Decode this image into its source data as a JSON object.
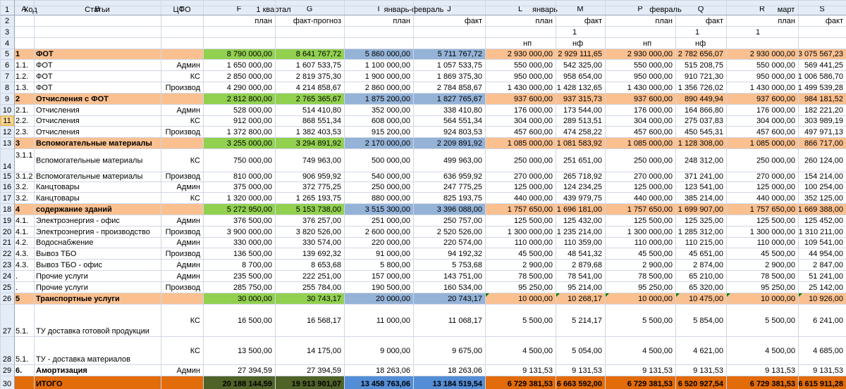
{
  "col_letters": [
    "A",
    "B",
    "C",
    "F",
    "G",
    "I",
    "J",
    "L",
    "M",
    "P",
    "Q",
    "R",
    "S"
  ],
  "row_numbers": [
    "1",
    "2",
    "3",
    "4",
    "5",
    "6",
    "7",
    "8",
    "9",
    "10",
    "11",
    "12",
    "13",
    "14",
    "15",
    "16",
    "17",
    "18",
    "19",
    "20",
    "21",
    "22",
    "23",
    "24",
    "25",
    "26",
    "27",
    "28",
    "29",
    "30"
  ],
  "header": {
    "code": "Код",
    "articles": "Статьи",
    "cfo": "ЦФО",
    "q1": "1 квартал",
    "jan_feb": "январь-февраль",
    "jan": "январь",
    "feb": "февраль",
    "mar": "март",
    "plan": "план",
    "fact_forecast": "факт-прогноз",
    "fact": "факт",
    "one": "1",
    "np": "нп",
    "nf": "нф"
  },
  "rows": [
    {
      "n": "5",
      "type": "group",
      "cells": [
        "1",
        "ФОТ",
        "",
        "8 790 000,00",
        "8 641 767,72",
        "5 860 000,00",
        "5 711 767,72",
        "2 930 000,00",
        "2 929 111,65",
        "2 930 000,00",
        "2 782 656,07",
        "2 930 000,00",
        "3 075 567,23"
      ]
    },
    {
      "n": "6",
      "type": "data",
      "cells": [
        "1.1.",
        "ФОТ",
        "Админ",
        "1 650 000,00",
        "1 607 533,75",
        "1 100 000,00",
        "1 057 533,75",
        "550 000,00",
        "542 325,00",
        "550 000,00",
        "515 208,75",
        "550 000,00",
        "569 441,25"
      ]
    },
    {
      "n": "7",
      "type": "data",
      "cells": [
        "1.2.",
        "ФОТ",
        "КС",
        "2 850 000,00",
        "2 819 375,30",
        "1 900 000,00",
        "1 869 375,30",
        "950 000,00",
        "958 654,00",
        "950 000,00",
        "910 721,30",
        "950 000,00",
        "1 006 586,70"
      ]
    },
    {
      "n": "8",
      "type": "data",
      "cells": [
        "1.3.",
        "ФОТ",
        "Производ",
        "4 290 000,00",
        "4 214 858,67",
        "2 860 000,00",
        "2 784 858,67",
        "1 430 000,00",
        "1 428 132,65",
        "1 430 000,00",
        "1 356 726,02",
        "1 430 000,00",
        "1 499 539,28"
      ]
    },
    {
      "n": "9",
      "type": "group",
      "cells": [
        "2",
        "Отчисления с ФОТ",
        "",
        "2 812 800,00",
        "2 765 365,67",
        "1 875 200,00",
        "1 827 765,67",
        "937 600,00",
        "937 315,73",
        "937 600,00",
        "890 449,94",
        "937 600,00",
        "984 181,52"
      ]
    },
    {
      "n": "10",
      "type": "data",
      "cells": [
        "2.1.",
        "Отчисления",
        "Админ",
        "528 000,00",
        "514 410,80",
        "352 000,00",
        "338 410,80",
        "176 000,00",
        "173 544,00",
        "176 000,00",
        "164 866,80",
        "176 000,00",
        "182 221,20"
      ]
    },
    {
      "n": "11",
      "type": "data",
      "cells": [
        "2.2.",
        "Отчисления",
        "КС",
        "912 000,00",
        "868 551,34",
        "608 000,00",
        "564 551,34",
        "304 000,00",
        "289 513,51",
        "304 000,00",
        "275 037,83",
        "304 000,00",
        "303 989,19"
      ]
    },
    {
      "n": "12",
      "type": "data",
      "cells": [
        "2.3.",
        "Отчисления",
        "Производ",
        "1 372 800,00",
        "1 382 403,53",
        "915 200,00",
        "924 803,53",
        "457 600,00",
        "474 258,22",
        "457 600,00",
        "450 545,31",
        "457 600,00",
        "497 971,13"
      ]
    },
    {
      "n": "13",
      "type": "group",
      "cells": [
        "3",
        "Вспомогательные материалы",
        "",
        "3 255 000,00",
        "3 294 891,92",
        "2 170 000,00",
        "2 209 891,92",
        "1 085 000,00",
        "1 081 583,92",
        "1 085 000,00",
        "1 128 308,00",
        "1 085 000,00",
        "866 717,00"
      ]
    },
    {
      "n": "14",
      "type": "data",
      "tall": true,
      "cells": [
        "3.1.1",
        "Вспомогательные материалы",
        "КС",
        "750 000,00",
        "749 963,00",
        "500 000,00",
        "499 963,00",
        "250 000,00",
        "251 651,00",
        "250 000,00",
        "248 312,00",
        "250 000,00",
        "260 124,00"
      ]
    },
    {
      "n": "15",
      "type": "data",
      "cells": [
        "3.1.2",
        "Вспомогательные материалы",
        "Производ",
        "810 000,00",
        "906 959,92",
        "540 000,00",
        "636 959,92",
        "270 000,00",
        "265 718,92",
        "270 000,00",
        "371 241,00",
        "270 000,00",
        "154 214,00"
      ]
    },
    {
      "n": "16",
      "type": "data",
      "cells": [
        "3.2.",
        "Канцтовары",
        "Админ",
        "375 000,00",
        "372 775,25",
        "250 000,00",
        "247 775,25",
        "125 000,00",
        "124 234,25",
        "125 000,00",
        "123 541,00",
        "125 000,00",
        "100 254,00"
      ]
    },
    {
      "n": "17",
      "type": "data",
      "cells": [
        "3.2.",
        "Канцтовары",
        "КС",
        "1 320 000,00",
        "1 265 193,75",
        "880 000,00",
        "825 193,75",
        "440 000,00",
        "439 979,75",
        "440 000,00",
        "385 214,00",
        "440 000,00",
        "352 125,00"
      ]
    },
    {
      "n": "18",
      "type": "group",
      "cells": [
        "4",
        "содержание зданий",
        "",
        "5 272 950,00",
        "5 153 738,00",
        "3 515 300,00",
        "3 396 088,00",
        "1 757 650,00",
        "1 696 181,00",
        "1 757 650,00",
        "1 699 907,00",
        "1 757 650,00",
        "1 669 388,00"
      ]
    },
    {
      "n": "19",
      "type": "data",
      "cells": [
        "4.1.",
        "Электроэнергия - офис",
        "Админ",
        "376 500,00",
        "376 257,00",
        "251 000,00",
        "250 757,00",
        "125 500,00",
        "125 432,00",
        "125 500,00",
        "125 325,00",
        "125 500,00",
        "125 452,00"
      ]
    },
    {
      "n": "20",
      "type": "data",
      "cells": [
        "4.1.",
        "Электроэнергия - производство",
        "Производ",
        "3 900 000,00",
        "3 820 526,00",
        "2 600 000,00",
        "2 520 526,00",
        "1 300 000,00",
        "1 235 214,00",
        "1 300 000,00",
        "1 285 312,00",
        "1 300 000,00",
        "1 310 211,00"
      ]
    },
    {
      "n": "21",
      "type": "data",
      "cells": [
        "4.2.",
        "Водоснабжение",
        "Админ",
        "330 000,00",
        "330 574,00",
        "220 000,00",
        "220 574,00",
        "110 000,00",
        "110 359,00",
        "110 000,00",
        "110 215,00",
        "110 000,00",
        "109 541,00"
      ]
    },
    {
      "n": "22",
      "type": "data",
      "cells": [
        "4.3.",
        "Вывоз ТБО",
        "Производ",
        "136 500,00",
        "139 692,32",
        "91 000,00",
        "94 192,32",
        "45 500,00",
        "48 541,32",
        "45 500,00",
        "45 651,00",
        "45 500,00",
        "44 954,00"
      ]
    },
    {
      "n": "23",
      "type": "data",
      "cells": [
        "4.3.",
        "Вывоз ТБО - офис",
        "Админ",
        "8 700,00",
        "8 653,68",
        "5 800,00",
        "5 753,68",
        "2 900,00",
        "2 879,68",
        "2 900,00",
        "2 874,00",
        "2 900,00",
        "2 847,00"
      ]
    },
    {
      "n": "24",
      "type": "data",
      "cells": [
        ".",
        "Прочие услуги",
        "Админ",
        "235 500,00",
        "222 251,00",
        "157 000,00",
        "143 751,00",
        "78 500,00",
        "78 541,00",
        "78 500,00",
        "65 210,00",
        "78 500,00",
        "51 241,00"
      ]
    },
    {
      "n": "25",
      "type": "data",
      "cells": [
        ".",
        "Прочие услуги",
        "Производ",
        "285 750,00",
        "255 784,00",
        "190 500,00",
        "160 534,00",
        "95 250,00",
        "95 214,00",
        "95 250,00",
        "65 320,00",
        "95 250,00",
        "25 142,00"
      ]
    },
    {
      "n": "26",
      "type": "group",
      "cells": [
        "5",
        "Транспортные услуги",
        "",
        "30 000,00",
        "30 743,17",
        "20 000,00",
        "20 743,17",
        "10 000,00",
        "10 268,17",
        "10 000,00",
        "10 475,00",
        "10 000,00",
        "10 926,00"
      ]
    },
    {
      "n": "27",
      "type": "data",
      "tall": true,
      "cells": [
        "5.1.",
        "ТУ доставка готовой продукции",
        "КС",
        "16 500,00",
        "16 568,17",
        "11 000,00",
        "11 068,17",
        "5 500,00",
        "5 214,17",
        "5 500,00",
        "5 854,00",
        "5 500,00",
        "6 241,00"
      ]
    },
    {
      "n": "28",
      "type": "data",
      "tall": true,
      "cells": [
        "5.1.",
        "ТУ - доставка материалов",
        "КС",
        "13 500,00",
        "14 175,00",
        "9 000,00",
        "9 675,00",
        "4 500,00",
        "5 054,00",
        "4 500,00",
        "4 621,00",
        "4 500,00",
        "4 685,00"
      ]
    },
    {
      "n": "29",
      "type": "amort",
      "cells": [
        "6.",
        "Амортизация",
        "Админ",
        "27 394,59",
        "27 394,59",
        "18 263,06",
        "18 263,06",
        "9 131,53",
        "9 131,53",
        "9 131,53",
        "9 131,53",
        "9 131,53",
        "9 131,53"
      ]
    },
    {
      "n": "30",
      "type": "total",
      "cells": [
        "",
        "ИТОГО",
        "",
        "20 188 144,59",
        "19 913 901,07",
        "13 458 763,06",
        "13 184 519,54",
        "6 729 381,53",
        "6 663 592,00",
        "6 729 381,53",
        "6 520 927,54",
        "6 729 381,53",
        "6 615 911,28"
      ]
    }
  ],
  "colors": {
    "header_bg": "#e4ecf7",
    "grid": "#d0d7e5",
    "border": "#9aa6b8",
    "orange": "#fac090",
    "green": "#92d050",
    "blue": "#95b3d7",
    "total_orange": "#e26b0a",
    "total_green": "#4f6228",
    "total_blue": "#538dd5",
    "selected_row_header": "#f9d99a"
  },
  "selected_row": "11"
}
